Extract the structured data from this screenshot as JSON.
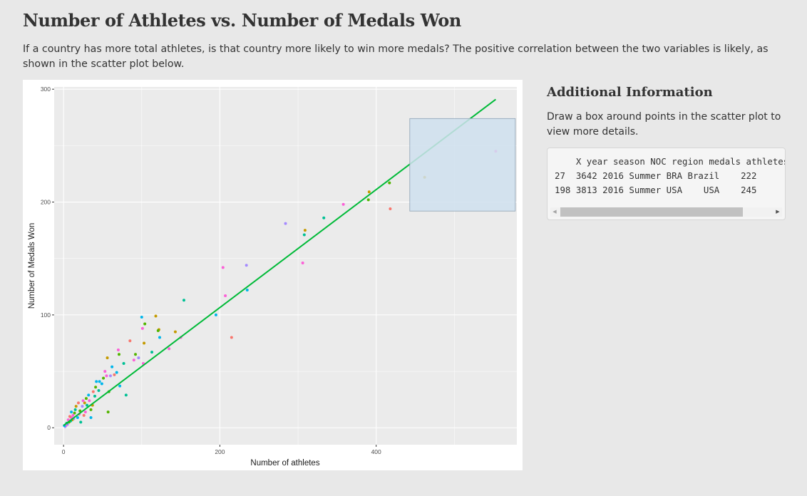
{
  "header": {
    "title": "Number of Athletes vs. Number of Medals Won",
    "description": "If a country has more total athletes, is that country more likely to win more medals? The positive correlation between the two variables is likely, as shown in the scatter plot below."
  },
  "sidebar": {
    "title": "Additional Information",
    "description": "Draw a box around points in the scatter plot to view more details.",
    "table_header": "    X year season NOC region medals athletes",
    "table_rows": [
      "27  3642 2016 Summer BRA Brazil    222",
      "198 3813 2016 Summer USA    USA    245"
    ]
  },
  "colors": {
    "page_background": "#e8e8e8",
    "panel_background": "#ebebeb",
    "grid": "#ffffff",
    "trend_line": "#00ba38",
    "brush_fill": "#cfe0ef",
    "brush_stroke": "#8fa3b5",
    "palette": [
      "#f8766d",
      "#c49a00",
      "#53b400",
      "#00c094",
      "#00b6eb",
      "#a58aff",
      "#fb61d7"
    ]
  },
  "chart_data": {
    "type": "scatter",
    "title": "",
    "xlabel": "Number of athletes",
    "ylabel": "Number of Medals Won",
    "xlim": [
      -12,
      580
    ],
    "ylim": [
      -15,
      302
    ],
    "xticks": [
      0,
      200,
      400
    ],
    "yticks": [
      0,
      100,
      200,
      300
    ],
    "grid": true,
    "legend": "none",
    "trend_line": {
      "x": [
        0,
        553
      ],
      "y": [
        2,
        291
      ]
    },
    "brush": {
      "x": [
        443,
        578
      ],
      "y": [
        192,
        274
      ]
    },
    "points": [
      {
        "x": 553,
        "y": 245,
        "c": 6
      },
      {
        "x": 462,
        "y": 222,
        "c": 1
      },
      {
        "x": 418,
        "y": 194,
        "c": 0
      },
      {
        "x": 417,
        "y": 217,
        "c": 2
      },
      {
        "x": 391,
        "y": 209,
        "c": 1
      },
      {
        "x": 390,
        "y": 202,
        "c": 2
      },
      {
        "x": 358,
        "y": 198,
        "c": 6
      },
      {
        "x": 333,
        "y": 186,
        "c": 3
      },
      {
        "x": 309,
        "y": 175,
        "c": 1
      },
      {
        "x": 308,
        "y": 171,
        "c": 3
      },
      {
        "x": 306,
        "y": 146,
        "c": 6
      },
      {
        "x": 284,
        "y": 181,
        "c": 5
      },
      {
        "x": 235,
        "y": 122,
        "c": 4
      },
      {
        "x": 234,
        "y": 144,
        "c": 5
      },
      {
        "x": 215,
        "y": 80,
        "c": 0
      },
      {
        "x": 207,
        "y": 117,
        "c": 6
      },
      {
        "x": 204,
        "y": 142,
        "c": 6
      },
      {
        "x": 195,
        "y": 100,
        "c": 4
      },
      {
        "x": 154,
        "y": 113,
        "c": 3
      },
      {
        "x": 150,
        "y": 80,
        "c": 6
      },
      {
        "x": 143,
        "y": 85,
        "c": 1
      },
      {
        "x": 135,
        "y": 70,
        "c": 6
      },
      {
        "x": 123,
        "y": 80,
        "c": 4
      },
      {
        "x": 122,
        "y": 87,
        "c": 1
      },
      {
        "x": 121,
        "y": 86,
        "c": 2
      },
      {
        "x": 118,
        "y": 99,
        "c": 1
      },
      {
        "x": 113,
        "y": 67,
        "c": 3
      },
      {
        "x": 104,
        "y": 92,
        "c": 2
      },
      {
        "x": 103,
        "y": 75,
        "c": 1
      },
      {
        "x": 102,
        "y": 57,
        "c": 6
      },
      {
        "x": 101,
        "y": 88,
        "c": 6
      },
      {
        "x": 100,
        "y": 98,
        "c": 4
      },
      {
        "x": 96,
        "y": 62,
        "c": 5
      },
      {
        "x": 92,
        "y": 65,
        "c": 2
      },
      {
        "x": 90,
        "y": 60,
        "c": 6
      },
      {
        "x": 85,
        "y": 77,
        "c": 0
      },
      {
        "x": 80,
        "y": 29,
        "c": 3
      },
      {
        "x": 77,
        "y": 57,
        "c": 3
      },
      {
        "x": 72,
        "y": 37,
        "c": 4
      },
      {
        "x": 71,
        "y": 65,
        "c": 2
      },
      {
        "x": 70,
        "y": 69,
        "c": 6
      },
      {
        "x": 68,
        "y": 49,
        "c": 4
      },
      {
        "x": 65,
        "y": 47,
        "c": 0
      },
      {
        "x": 62,
        "y": 54,
        "c": 4
      },
      {
        "x": 60,
        "y": 46,
        "c": 5
      },
      {
        "x": 58,
        "y": 32,
        "c": 2
      },
      {
        "x": 57,
        "y": 14,
        "c": 2
      },
      {
        "x": 56,
        "y": 62,
        "c": 1
      },
      {
        "x": 55,
        "y": 46,
        "c": 6
      },
      {
        "x": 53,
        "y": 50,
        "c": 6
      },
      {
        "x": 51,
        "y": 44,
        "c": 2
      },
      {
        "x": 49,
        "y": 39,
        "c": 4
      },
      {
        "x": 46,
        "y": 41,
        "c": 4
      },
      {
        "x": 45,
        "y": 33,
        "c": 3
      },
      {
        "x": 42,
        "y": 41,
        "c": 4
      },
      {
        "x": 41,
        "y": 36,
        "c": 2
      },
      {
        "x": 40,
        "y": 28,
        "c": 3
      },
      {
        "x": 38,
        "y": 32,
        "c": 0
      },
      {
        "x": 37,
        "y": 20,
        "c": 1
      },
      {
        "x": 35,
        "y": 9,
        "c": 4
      },
      {
        "x": 35,
        "y": 16,
        "c": 2
      },
      {
        "x": 33,
        "y": 24,
        "c": 6
      },
      {
        "x": 32,
        "y": 29,
        "c": 4
      },
      {
        "x": 30,
        "y": 20,
        "c": 3
      },
      {
        "x": 29,
        "y": 26,
        "c": 2
      },
      {
        "x": 28,
        "y": 14,
        "c": 6
      },
      {
        "x": 27,
        "y": 22,
        "c": 1
      },
      {
        "x": 26,
        "y": 11,
        "c": 0
      },
      {
        "x": 25,
        "y": 24,
        "c": 6
      },
      {
        "x": 24,
        "y": 19,
        "c": 5
      },
      {
        "x": 22,
        "y": 5,
        "c": 3
      },
      {
        "x": 21,
        "y": 15,
        "c": 2
      },
      {
        "x": 20,
        "y": 12,
        "c": 6
      },
      {
        "x": 19,
        "y": 22,
        "c": 0
      },
      {
        "x": 18,
        "y": 9,
        "c": 4
      },
      {
        "x": 16,
        "y": 19,
        "c": 1
      },
      {
        "x": 15,
        "y": 16,
        "c": 3
      },
      {
        "x": 14,
        "y": 13,
        "c": 2
      },
      {
        "x": 13,
        "y": 8,
        "c": 5
      },
      {
        "x": 12,
        "y": 11,
        "c": 6
      },
      {
        "x": 11,
        "y": 7,
        "c": 1
      },
      {
        "x": 10,
        "y": 14,
        "c": 4
      },
      {
        "x": 10,
        "y": 9,
        "c": 6
      },
      {
        "x": 9,
        "y": 6,
        "c": 3
      },
      {
        "x": 8,
        "y": 10,
        "c": 0
      },
      {
        "x": 7,
        "y": 5,
        "c": 2
      },
      {
        "x": 6,
        "y": 7,
        "c": 6
      },
      {
        "x": 5,
        "y": 3,
        "c": 5
      },
      {
        "x": 4,
        "y": 4,
        "c": 3
      },
      {
        "x": 3,
        "y": 2,
        "c": 6
      },
      {
        "x": 2,
        "y": 1,
        "c": 5
      },
      {
        "x": 1,
        "y": 2,
        "c": 4
      }
    ]
  }
}
